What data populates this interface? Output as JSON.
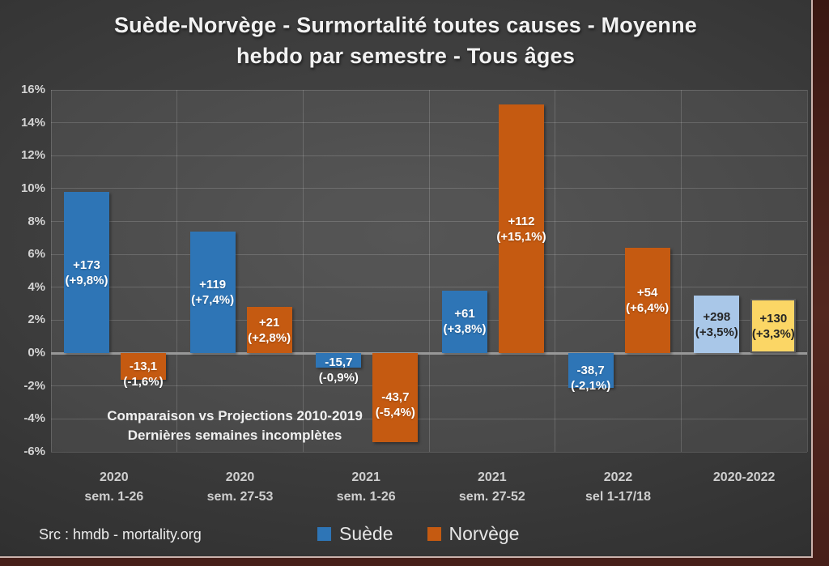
{
  "title": {
    "line1": "Suède-Norvège - Surmortalité toutes causes - Moyenne",
    "line2": "hebdo par semestre - Tous âges"
  },
  "annotation": {
    "line1": "Comparaison vs Projections 2010-2019",
    "line2": "Dernières semaines incomplètes"
  },
  "source": "Src : hmdb - mortality.org",
  "legend": {
    "items": [
      {
        "label": "Suède",
        "color_key": "sweden"
      },
      {
        "label": "Norvège",
        "color_key": "norway"
      }
    ]
  },
  "colors": {
    "sweden": "#2E75B6",
    "norway": "#C55A11",
    "sweden_total": "#A9C7E8",
    "norway_total": "#FBD665",
    "total_border": "#595959",
    "label_light": "#FFFFFF",
    "label_dark": "#262626"
  },
  "chart_data": {
    "type": "bar",
    "title": "Suède-Norvège - Surmortalité toutes causes - Moyenne hebdo par semestre - Tous âges",
    "categories": [
      "2020 sem. 1-26",
      "2020 sem. 27-53",
      "2021 sem. 1-26",
      "2021 sem. 27-52",
      "2022 sel 1-17/18",
      "2020-2022"
    ],
    "series": [
      {
        "name": "Suède",
        "values": [
          9.8,
          7.4,
          -0.9,
          3.8,
          -2.1,
          3.5
        ]
      },
      {
        "name": "Norvège",
        "values": [
          -1.6,
          2.8,
          -5.4,
          15.1,
          6.4,
          3.3
        ]
      }
    ],
    "y_axis": {
      "min": -6,
      "max": 16,
      "step": 2,
      "ticks": [
        "16%",
        "14%",
        "12%",
        "10%",
        "8%",
        "6%",
        "4%",
        "2%",
        "0%",
        "-2%",
        "-4%",
        "-6%"
      ]
    },
    "x_labels": [
      [
        "2020",
        "sem. 1-26"
      ],
      [
        "2020",
        "sem. 27-53"
      ],
      [
        "2021",
        "sem. 1-26"
      ],
      [
        "2021",
        "sem. 27-52"
      ],
      [
        "2022",
        "sel 1-17/18"
      ],
      [
        "2020-2022",
        ""
      ]
    ],
    "grid": true,
    "legend_position": "bottom",
    "bars": [
      {
        "group": 0,
        "slot": 0,
        "series": "Suède",
        "value_pct": 9.8,
        "label_count": "+173",
        "label_pct": "(+9,8%)",
        "color_key": "sweden",
        "text": "light",
        "bordered": false
      },
      {
        "group": 0,
        "slot": 1,
        "series": "Norvège",
        "value_pct": -1.6,
        "label_count": "-13,1",
        "label_pct": "(-1,6%)",
        "color_key": "norway",
        "text": "light",
        "bordered": false
      },
      {
        "group": 1,
        "slot": 0,
        "series": "Suède",
        "value_pct": 7.4,
        "label_count": "+119",
        "label_pct": "(+7,4%)",
        "color_key": "sweden",
        "text": "light",
        "bordered": false
      },
      {
        "group": 1,
        "slot": 1,
        "series": "Norvège",
        "value_pct": 2.8,
        "label_count": "+21",
        "label_pct": "(+2,8%)",
        "color_key": "norway",
        "text": "light",
        "bordered": false
      },
      {
        "group": 2,
        "slot": 0,
        "series": "Suède",
        "value_pct": -0.9,
        "label_count": "-15,7",
        "label_pct": "(-0,9%)",
        "color_key": "sweden",
        "text": "light",
        "bordered": false
      },
      {
        "group": 2,
        "slot": 1,
        "series": "Norvège",
        "value_pct": -5.4,
        "label_count": "-43,7",
        "label_pct": "(-5,4%)",
        "color_key": "norway",
        "text": "light",
        "bordered": false
      },
      {
        "group": 3,
        "slot": 0,
        "series": "Suède",
        "value_pct": 3.8,
        "label_count": "+61",
        "label_pct": "(+3,8%)",
        "color_key": "sweden",
        "text": "light",
        "bordered": false
      },
      {
        "group": 3,
        "slot": 1,
        "series": "Norvège",
        "value_pct": 15.1,
        "label_count": "+112",
        "label_pct": "(+15,1%)",
        "color_key": "norway",
        "text": "light",
        "bordered": false
      },
      {
        "group": 4,
        "slot": 0,
        "series": "Suède",
        "value_pct": -2.1,
        "label_count": "-38,7",
        "label_pct": "(-2,1%)",
        "color_key": "sweden",
        "text": "light",
        "bordered": false
      },
      {
        "group": 4,
        "slot": 1,
        "series": "Norvège",
        "value_pct": 6.4,
        "label_count": "+54",
        "label_pct": "(+6,4%)",
        "color_key": "norway",
        "text": "light",
        "bordered": false
      },
      {
        "group": 5,
        "slot": 0,
        "series": "Suède total",
        "value_pct": 3.5,
        "label_count": "+298",
        "label_pct": "(+3,5%)",
        "color_key": "sweden_total",
        "text": "dark",
        "bordered": false
      },
      {
        "group": 5,
        "slot": 1,
        "series": "Norvège total",
        "value_pct": 3.3,
        "label_count": "+130",
        "label_pct": "(+3,3%)",
        "color_key": "norway_total",
        "text": "dark",
        "bordered": true
      }
    ]
  }
}
